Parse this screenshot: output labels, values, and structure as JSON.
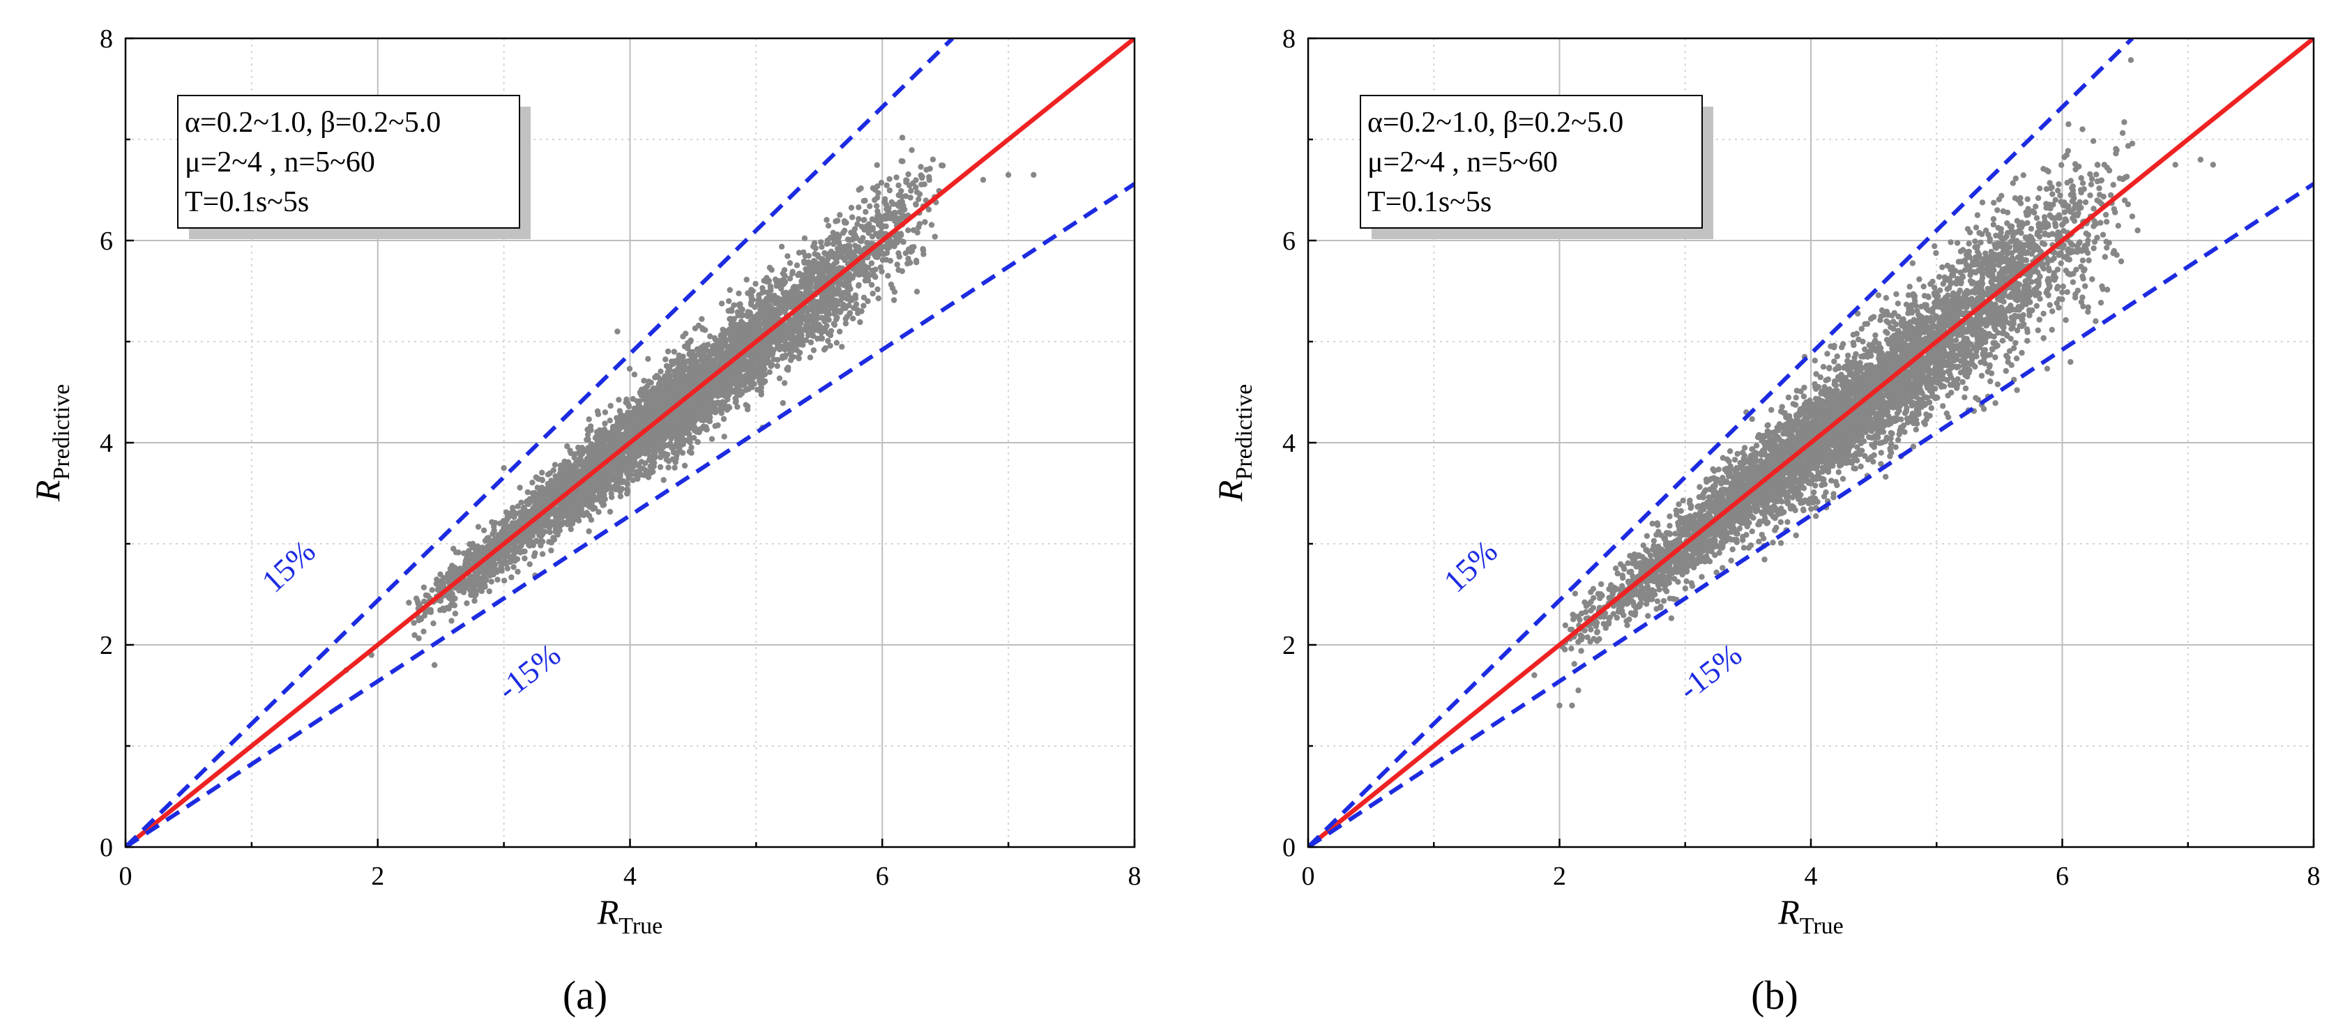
{
  "figure": {
    "background": "#ffffff"
  },
  "chart_data": [
    {
      "panel_label": "(a)",
      "type": "scatter",
      "title": "",
      "xlabel": {
        "main": "R",
        "sub": "True"
      },
      "ylabel": {
        "main": "R",
        "sub": "Predictive"
      },
      "xlim": [
        0,
        8
      ],
      "ylim": [
        0,
        8
      ],
      "xticks": [
        "0",
        "2",
        "4",
        "6",
        "8"
      ],
      "yticks": [
        "0",
        "2",
        "4",
        "6",
        "8"
      ],
      "grid": true,
      "annotation": {
        "line1": "α=0.2~1.0, β=0.2~5.0",
        "line2": "μ=2~4 , n=5~60",
        "line3": "T=0.1s~5s",
        "placement": "top-left"
      },
      "reference_lines": [
        {
          "name": "ideal",
          "slope": 1.0,
          "color": "#ee2222",
          "style": "solid"
        },
        {
          "name": "upper",
          "slope": 1.22,
          "color": "#1c2be0",
          "style": "dashed",
          "label": "15%"
        },
        {
          "name": "lower",
          "slope": 0.82,
          "color": "#1c2be0",
          "style": "dashed",
          "label": "-15%"
        }
      ],
      "series": [
        {
          "name": "samples",
          "color": "#878787",
          "generator": {
            "n": 5500,
            "x_range": [
              2.2,
              6.5
            ],
            "spread": 0.048,
            "seed": 11
          },
          "points": [
            [
              1.75,
              1.75
            ],
            [
              1.95,
              1.9
            ],
            [
              2.45,
              1.8
            ],
            [
              6.35,
              6.7
            ],
            [
              6.8,
              6.6
            ],
            [
              7.0,
              6.65
            ],
            [
              7.2,
              6.65
            ],
            [
              2.55,
              2.55
            ],
            [
              3.0,
              3.75
            ],
            [
              3.9,
              5.1
            ],
            [
              5.05,
              4.15
            ],
            [
              4.35,
              4.9
            ]
          ]
        }
      ]
    },
    {
      "panel_label": "(b)",
      "type": "scatter",
      "title": "",
      "xlabel": {
        "main": "R",
        "sub": "True"
      },
      "ylabel": {
        "main": "R",
        "sub": "Predictive"
      },
      "xlim": [
        0,
        8
      ],
      "ylim": [
        0,
        8
      ],
      "xticks": [
        "0",
        "2",
        "4",
        "6",
        "8"
      ],
      "yticks": [
        "0",
        "2",
        "4",
        "6",
        "8"
      ],
      "grid": true,
      "annotation": {
        "line1": "α=0.2~1.0, β=0.2~5.0",
        "line2": "μ=2~4 , n=5~60",
        "line3": "T=0.1s~5s",
        "placement": "top-left"
      },
      "reference_lines": [
        {
          "name": "ideal",
          "slope": 1.0,
          "color": "#ee2222",
          "style": "solid"
        },
        {
          "name": "upper",
          "slope": 1.22,
          "color": "#1c2be0",
          "style": "dashed",
          "label": "15%"
        },
        {
          "name": "lower",
          "slope": 0.82,
          "color": "#1c2be0",
          "style": "dashed",
          "label": "-15%"
        }
      ],
      "series": [
        {
          "name": "samples",
          "color": "#878787",
          "generator": {
            "n": 5500,
            "x_range": [
              2.0,
              6.6
            ],
            "spread": 0.065,
            "seed": 29
          },
          "points": [
            [
              1.8,
              1.7
            ],
            [
              2.0,
              1.4
            ],
            [
              2.1,
              1.4
            ],
            [
              2.15,
              1.55
            ],
            [
              6.9,
              6.75
            ],
            [
              7.1,
              6.8
            ],
            [
              7.2,
              6.75
            ],
            [
              6.6,
              6.1
            ],
            [
              3.95,
              4.85
            ],
            [
              4.9,
              4.2
            ],
            [
              3.3,
              3.85
            ]
          ]
        }
      ]
    }
  ]
}
